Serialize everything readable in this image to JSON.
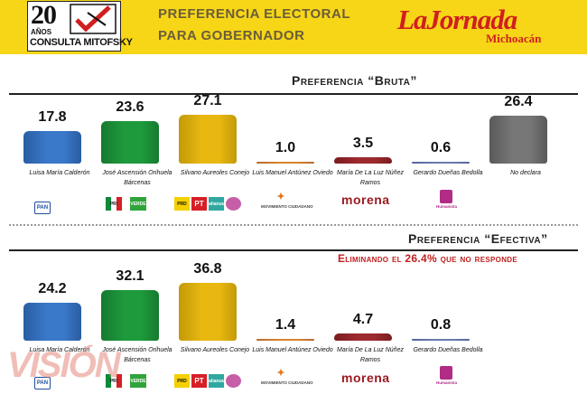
{
  "header": {
    "logo_number": "20",
    "logo_years": "AÑOS",
    "logo_name": "CONSULTA MITOFSKY",
    "title_line1": "PREFERENCIA ELECTORAL",
    "title_line2": "PARA GOBERNADOR",
    "brand": "LaJornada",
    "brand_sub": "Michoacán"
  },
  "sections": {
    "bruta": {
      "title": "Preferencia “Bruta”"
    },
    "efectiva": {
      "title": "Preferencia “Efectiva”",
      "subtitle": "Eliminando el 26.4% que no responde"
    }
  },
  "candidates": [
    {
      "label": "Luisa  María Calderón"
    },
    {
      "label": "José Ascensión Orihuela Bárcenas"
    },
    {
      "label": "Silvano Aureoles Conejo"
    },
    {
      "label": "Luis Manuel Antúnez Oviedo"
    },
    {
      "label": "María De La Luz Núñez Ramos"
    },
    {
      "label": "Gerardo Dueñas Bedolla"
    },
    {
      "label": "No declara"
    }
  ],
  "parties": {
    "pan": "PAN",
    "pri": "PRI",
    "verde": "VERDE",
    "prd": "PRD",
    "pt": "PT",
    "nal": "alianza",
    "movimiento": "MOVIMIENTO CIUDADANO",
    "morena": "morena",
    "humanista": "Humanista"
  },
  "watermark": "VISIÓN",
  "colors": [
    "#3a78c9",
    "#1e9a3c",
    "#e8b810",
    "#d9842f",
    "#9c2a2e",
    "#6a7bb0",
    "#777777"
  ],
  "chart_data": [
    {
      "type": "bar",
      "title": "Preferencia “Bruta”",
      "categories": [
        "Luisa  María Calderón",
        "José Ascensión Orihuela Bárcenas",
        "Silvano Aureoles Conejo",
        "Luis Manuel Antúnez Oviedo",
        "María De La Luz Núñez Ramos",
        "Gerardo Dueñas Bedolla",
        "No declara"
      ],
      "values": [
        17.8,
        23.6,
        27.1,
        1.0,
        3.5,
        0.6,
        26.4
      ],
      "value_labels": [
        "17.8",
        "23.6",
        "27.1",
        "1.0",
        "3.5",
        "0.6",
        "26.4"
      ]
    },
    {
      "type": "bar",
      "title": "Preferencia “Efectiva”",
      "subtitle": "Eliminando el 26.4% que no responde",
      "categories": [
        "Luisa  María Calderón",
        "José Ascensión Orihuela Bárcenas",
        "Silvano Aureoles Conejo",
        "Luis Manuel Antúnez Oviedo",
        "María De La Luz Núñez Ramos",
        "Gerardo Dueñas Bedolla"
      ],
      "values": [
        24.2,
        32.1,
        36.8,
        1.4,
        4.7,
        0.8
      ],
      "value_labels": [
        "24.2",
        "32.1",
        "36.8",
        "1.4",
        "4.7",
        "0.8"
      ]
    }
  ]
}
